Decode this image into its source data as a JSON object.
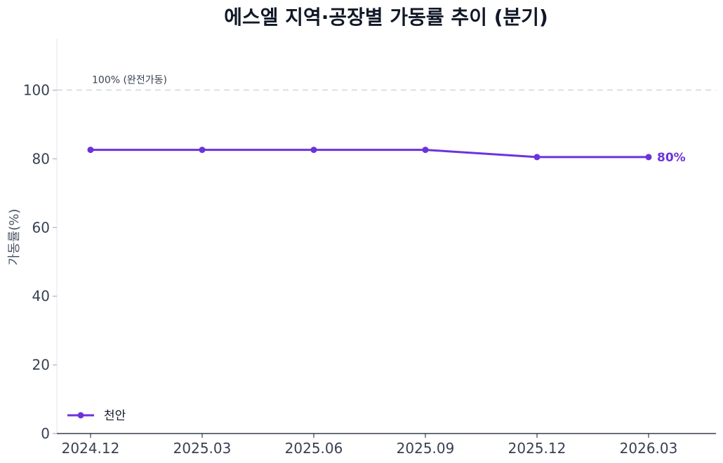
{
  "chart_data": {
    "type": "line",
    "title": "에스엘 지역·공장별 가동률 추이 (분기)",
    "xlabel": "",
    "ylabel": "가동률(%)",
    "categories": [
      "2024.12",
      "2025.03",
      "2025.06",
      "2025.09",
      "2025.12",
      "2026.03"
    ],
    "series": [
      {
        "name": "천안",
        "values": [
          82.6,
          82.6,
          82.6,
          82.6,
          80.5,
          80.5
        ],
        "color": "#6d32dc"
      }
    ],
    "end_label": "80%",
    "ylim": [
      0,
      115
    ],
    "yticks": [
      0,
      20,
      40,
      60,
      80,
      100
    ],
    "reference_line": {
      "value": 100,
      "label": "100% (완전가동)",
      "color": "#d1d5db"
    },
    "grid": false,
    "legend": "bottom-left"
  }
}
